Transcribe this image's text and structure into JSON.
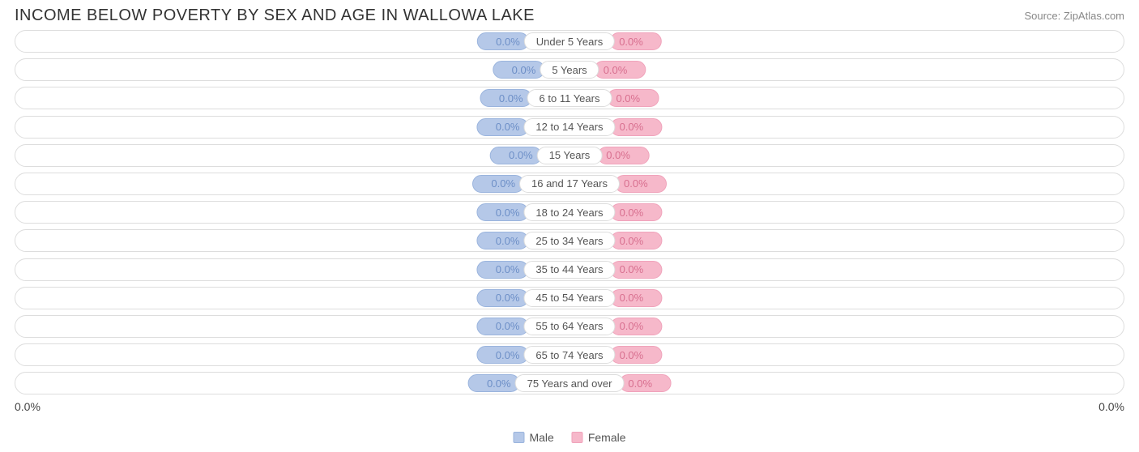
{
  "header": {
    "title": "INCOME BELOW POVERTY BY SEX AND AGE IN WALLOWA LAKE",
    "source": "Source: ZipAtlas.com"
  },
  "chart": {
    "type": "diverging-bar-horizontal",
    "background_color": "#ffffff",
    "track_border_color": "#dddddd",
    "male_fill": "#b5c8e8",
    "male_border": "#9ab4dd",
    "male_text": "#6d8fc7",
    "female_fill": "#f6b8ca",
    "female_border": "#f0a3bb",
    "female_text": "#d86f8f",
    "label_text_color": "#555555",
    "label_bg": "#ffffff",
    "label_border": "#dddddd",
    "title_fontsize": 20,
    "pill_fontsize": 13,
    "rows": [
      {
        "category": "Under 5 Years",
        "male_value": 0.0,
        "male_label": "0.0%",
        "female_value": 0.0,
        "female_label": "0.0%"
      },
      {
        "category": "5 Years",
        "male_value": 0.0,
        "male_label": "0.0%",
        "female_value": 0.0,
        "female_label": "0.0%"
      },
      {
        "category": "6 to 11 Years",
        "male_value": 0.0,
        "male_label": "0.0%",
        "female_value": 0.0,
        "female_label": "0.0%"
      },
      {
        "category": "12 to 14 Years",
        "male_value": 0.0,
        "male_label": "0.0%",
        "female_value": 0.0,
        "female_label": "0.0%"
      },
      {
        "category": "15 Years",
        "male_value": 0.0,
        "male_label": "0.0%",
        "female_value": 0.0,
        "female_label": "0.0%"
      },
      {
        "category": "16 and 17 Years",
        "male_value": 0.0,
        "male_label": "0.0%",
        "female_value": 0.0,
        "female_label": "0.0%"
      },
      {
        "category": "18 to 24 Years",
        "male_value": 0.0,
        "male_label": "0.0%",
        "female_value": 0.0,
        "female_label": "0.0%"
      },
      {
        "category": "25 to 34 Years",
        "male_value": 0.0,
        "male_label": "0.0%",
        "female_value": 0.0,
        "female_label": "0.0%"
      },
      {
        "category": "35 to 44 Years",
        "male_value": 0.0,
        "male_label": "0.0%",
        "female_value": 0.0,
        "female_label": "0.0%"
      },
      {
        "category": "45 to 54 Years",
        "male_value": 0.0,
        "male_label": "0.0%",
        "female_value": 0.0,
        "female_label": "0.0%"
      },
      {
        "category": "55 to 64 Years",
        "male_value": 0.0,
        "male_label": "0.0%",
        "female_value": 0.0,
        "female_label": "0.0%"
      },
      {
        "category": "65 to 74 Years",
        "male_value": 0.0,
        "male_label": "0.0%",
        "female_value": 0.0,
        "female_label": "0.0%"
      },
      {
        "category": "75 Years and over",
        "male_value": 0.0,
        "male_label": "0.0%",
        "female_value": 0.0,
        "female_label": "0.0%"
      }
    ],
    "axis": {
      "left_label": "0.0%",
      "right_label": "0.0%",
      "text_color": "#444444",
      "fontsize": 14
    },
    "legend": {
      "items": [
        {
          "label": "Male",
          "color": "#b5c8e8",
          "border": "#9ab4dd"
        },
        {
          "label": "Female",
          "color": "#f6b8ca",
          "border": "#f0a3bb"
        }
      ],
      "text_color": "#555555",
      "fontsize": 14
    }
  }
}
